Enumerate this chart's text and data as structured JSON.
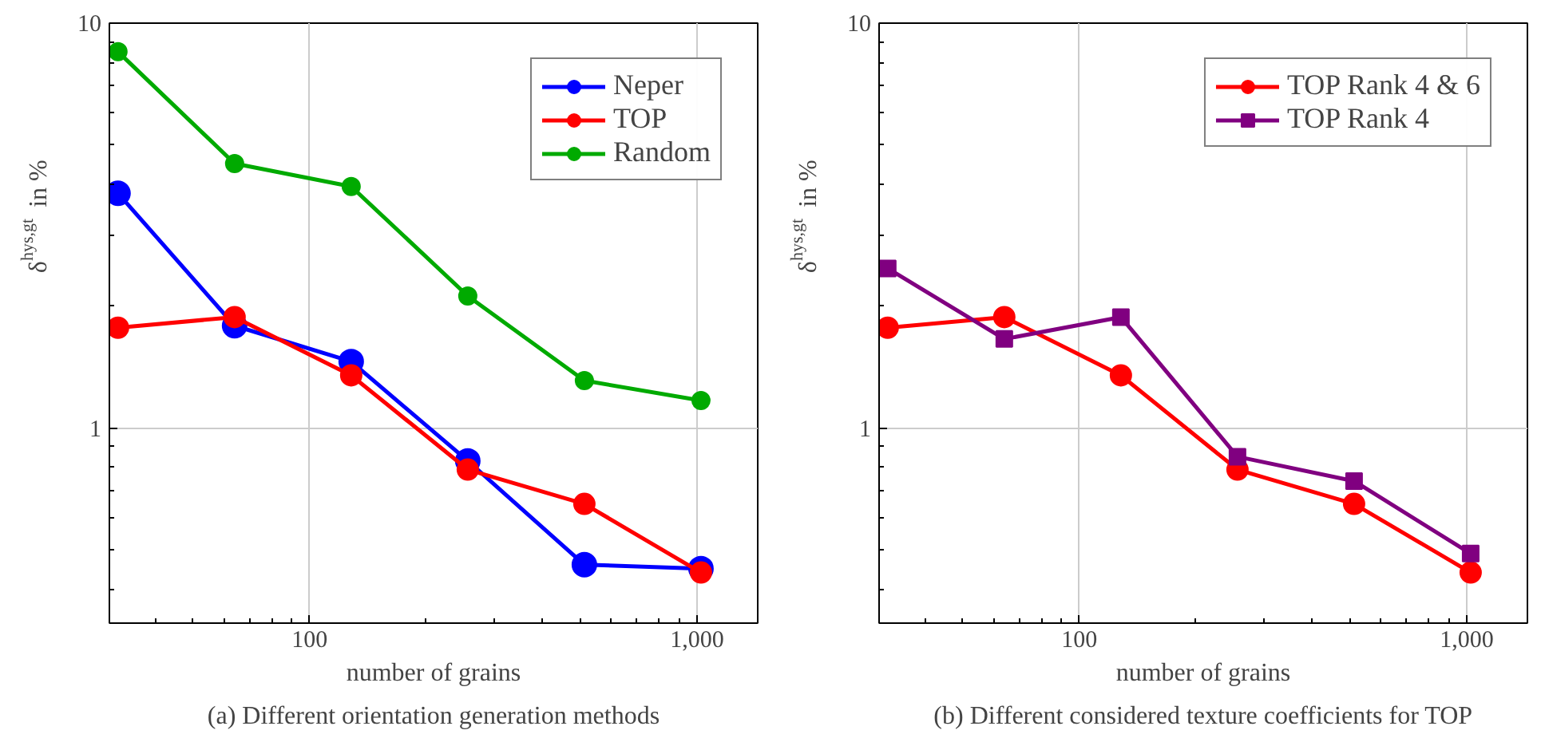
{
  "chart_data": [
    {
      "type": "line",
      "xlabel": "number of grains",
      "ylabel": "δ$^{hys,gt}$ in %",
      "x": [
        32,
        64,
        128,
        256,
        512,
        1024
      ],
      "log": "xy",
      "xlim": [
        30.4,
        1435
      ],
      "ylim": [
        0.33,
        10
      ],
      "xticks": [
        100,
        {
          "value": 1000,
          "label": "1,000"
        }
      ],
      "yticks": [
        1,
        10
      ],
      "grid": true,
      "legend": "top right",
      "marker": "circle",
      "annotations": [
        "(a) Different orientation generation methods"
      ],
      "series": [
        {
          "name": "Neper",
          "color": "#0000ff",
          "values": [
            3.8,
            1.79,
            1.46,
            0.83,
            0.46,
            0.45
          ]
        },
        {
          "name": "TOP",
          "color": "#ff0000",
          "values": [
            1.77,
            1.88,
            1.35,
            0.79,
            0.65,
            0.44
          ]
        },
        {
          "name": "Random",
          "color": "#00aa00",
          "values": [
            8.5,
            4.5,
            3.95,
            2.12,
            1.31,
            1.17
          ]
        }
      ]
    },
    {
      "type": "line",
      "xlabel": "number of grains",
      "ylabel": "δ$^{hys,gt}$ in %",
      "x": [
        32,
        64,
        128,
        256,
        512,
        1024
      ],
      "log": "xy",
      "xlim": [
        30.4,
        1435
      ],
      "ylim": [
        0.33,
        10
      ],
      "xticks": [
        100,
        {
          "value": 1000,
          "label": "1,000"
        }
      ],
      "yticks": [
        1,
        10
      ],
      "grid": true,
      "legend": "top right",
      "annotations": [
        "(b) Different considered texture coefficients for TOP"
      ],
      "series": [
        {
          "name": "TOP Rank 4 & 6",
          "color": "#ff0000",
          "marker": "circle",
          "values": [
            1.77,
            1.88,
            1.35,
            0.79,
            0.65,
            0.44
          ]
        },
        {
          "name": "TOP Rank 4",
          "color": "#800080",
          "marker": "square",
          "values": [
            2.48,
            1.66,
            1.88,
            0.85,
            0.74,
            0.49
          ]
        }
      ]
    }
  ]
}
